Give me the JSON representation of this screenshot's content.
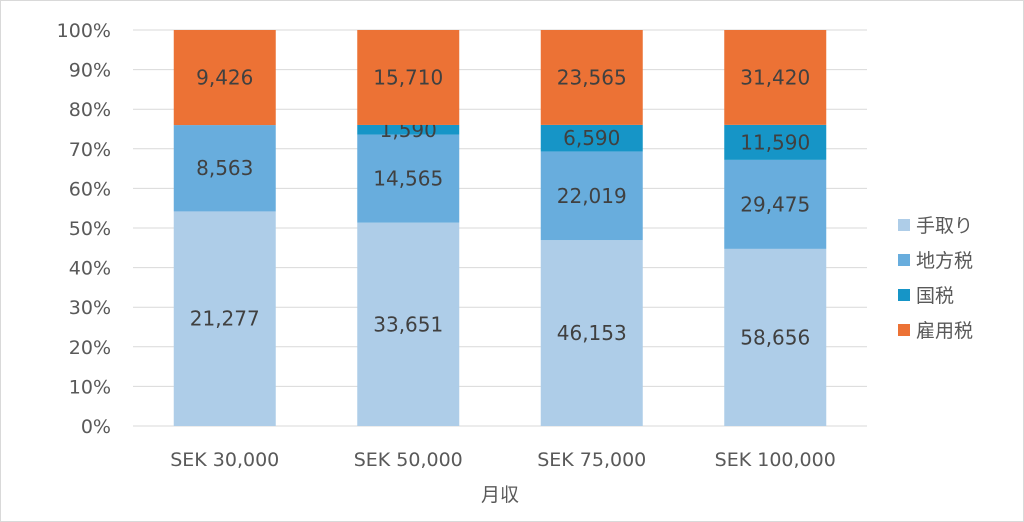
{
  "chart_data": {
    "type": "bar",
    "stacked": "percent",
    "title": "",
    "xlabel": "月収",
    "ylabel": "",
    "ylim": [
      0,
      100
    ],
    "yticks": [
      "0%",
      "10%",
      "20%",
      "30%",
      "40%",
      "50%",
      "60%",
      "70%",
      "80%",
      "90%",
      "100%"
    ],
    "categories": [
      "SEK 30,000",
      "SEK 50,000",
      "SEK 75,000",
      "SEK 100,000"
    ],
    "series": [
      {
        "name": "手取り",
        "color": "#AECDE8",
        "values": [
          21277,
          33651,
          46153,
          58656
        ],
        "labels": [
          "21,277",
          "33,651",
          "46,153",
          "58,656"
        ]
      },
      {
        "name": "地方税",
        "color": "#68ADDD",
        "values": [
          8563,
          14565,
          22019,
          29475
        ],
        "labels": [
          "8,563",
          "14,565",
          "22,019",
          "29,475"
        ]
      },
      {
        "name": "国税",
        "color": "#1695C7",
        "values": [
          0,
          1590,
          6590,
          11590
        ],
        "labels": [
          "",
          "1,590",
          "6,590",
          "11,590"
        ]
      },
      {
        "name": "雇用税",
        "color": "#EC7235",
        "values": [
          9426,
          15710,
          23565,
          31420
        ],
        "labels": [
          "9,426",
          "15,710",
          "23,565",
          "31,420"
        ]
      }
    ],
    "grid": true,
    "legend": "right"
  }
}
